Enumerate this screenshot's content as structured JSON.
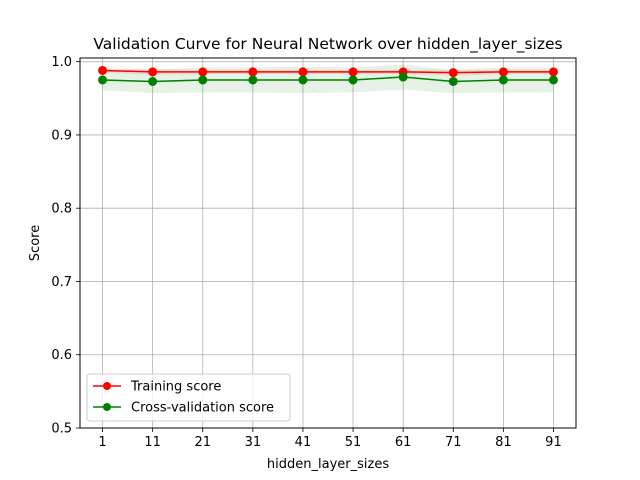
{
  "chart_data": {
    "type": "line",
    "title": "Validation Curve for Neural Network over hidden_layer_sizes",
    "xlabel": "hidden_layer_sizes",
    "ylabel": "Score",
    "categories": [
      "1",
      "11",
      "21",
      "31",
      "41",
      "51",
      "61",
      "71",
      "81",
      "91"
    ],
    "x": [
      1,
      11,
      21,
      31,
      41,
      51,
      61,
      71,
      81,
      91
    ],
    "ylim": [
      0.5,
      1.0
    ],
    "yticks": [
      "0.5",
      "0.6",
      "0.7",
      "0.8",
      "0.9",
      "1.0"
    ],
    "ytick_values": [
      0.5,
      0.6,
      0.7,
      0.8,
      0.9,
      1.0
    ],
    "grid": true,
    "legend_position": "lower-left",
    "series": [
      {
        "name": "Training score",
        "color": "#ff0000",
        "band_color": "#ff0000",
        "values": [
          0.988,
          0.986,
          0.986,
          0.986,
          0.986,
          0.986,
          0.986,
          0.985,
          0.986,
          0.986
        ],
        "band_low": [
          0.985,
          0.982,
          0.983,
          0.983,
          0.983,
          0.983,
          0.983,
          0.981,
          0.983,
          0.983
        ],
        "band_high": [
          0.991,
          0.99,
          0.989,
          0.989,
          0.989,
          0.989,
          0.989,
          0.989,
          0.989,
          0.989
        ]
      },
      {
        "name": "Cross-validation score",
        "color": "#008000",
        "band_color": "#008000",
        "values": [
          0.975,
          0.973,
          0.975,
          0.975,
          0.975,
          0.975,
          0.979,
          0.973,
          0.975,
          0.975
        ],
        "band_low": [
          0.961,
          0.957,
          0.958,
          0.958,
          0.957,
          0.958,
          0.962,
          0.957,
          0.958,
          0.958
        ],
        "band_high": [
          0.989,
          0.989,
          0.992,
          0.992,
          0.993,
          0.992,
          0.996,
          0.989,
          0.992,
          0.992
        ]
      }
    ]
  }
}
